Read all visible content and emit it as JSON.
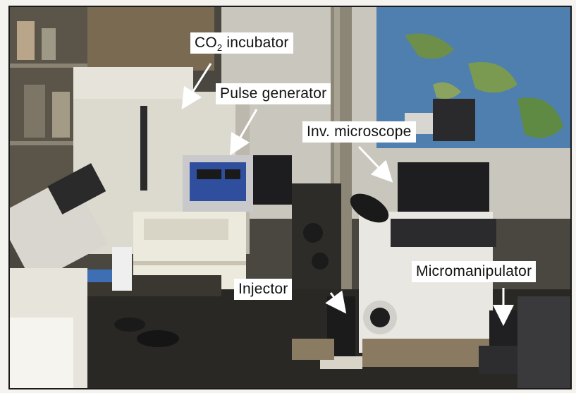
{
  "labels": {
    "co2_main": "CO",
    "co2_sub": "2",
    "co2_rest": " incubator",
    "pulse_generator": "Pulse generator",
    "inv_microscope": "Inv. microscope",
    "injector": "Injector",
    "micromanipulator": "Micromanipulator"
  },
  "colors": {
    "label_bg": "#ffffff",
    "arrow": "#ffffff",
    "frame": "#1a1a1a"
  }
}
